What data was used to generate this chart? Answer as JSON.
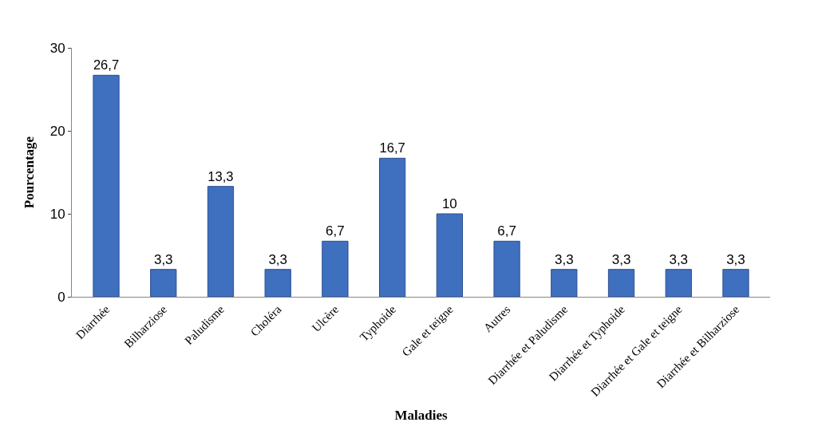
{
  "chart_data": {
    "type": "bar",
    "xlabel": "Maladies",
    "ylabel": "Pourcentage",
    "categories": [
      "Diarrhée",
      "Bilharziose",
      "Paludisme",
      "Choléra",
      "Ulcère",
      "Typhoide",
      "Gale et teigne",
      "Autres",
      "Diarrhée et Paludisme",
      "Diarrhée et Typhoide",
      "Diarrhée et Gale et teigne",
      "Diarrhée et Bilharziose"
    ],
    "values": [
      26.7,
      3.3,
      13.3,
      3.3,
      6.7,
      16.7,
      10,
      6.7,
      3.3,
      3.3,
      3.3,
      3.3
    ],
    "value_labels": [
      "26,7",
      "3,3",
      "13,3",
      "3,3",
      "6,7",
      "16,7",
      "10",
      "6,7",
      "3,3",
      "3,3",
      "3,3",
      "3,3"
    ],
    "color": "#3f6fbf",
    "ylim": [
      0,
      30
    ],
    "yticks": [
      0,
      10,
      20,
      30
    ]
  }
}
